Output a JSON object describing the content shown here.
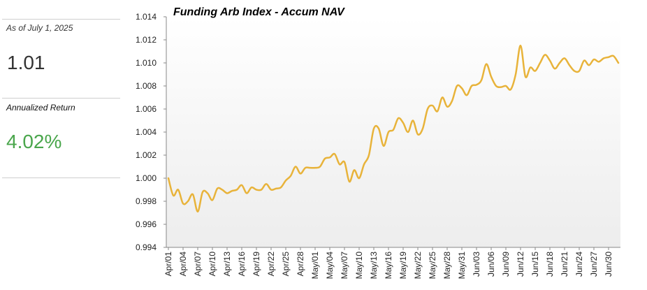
{
  "sidebar": {
    "as_of": "As of July 1, 2025",
    "nav_value": "1.01",
    "annualized_label": "Annualized Return",
    "annualized_value": "4.02%",
    "value_color": "#4aa64c"
  },
  "chart_data": {
    "type": "area",
    "title": "Funding Arb Index - Accum NAV",
    "xlabel": "",
    "ylabel": "",
    "ylim": [
      0.994,
      1.014
    ],
    "y_ticks": [
      "1.014",
      "1.012",
      "1.010",
      "1.008",
      "1.006",
      "1.004",
      "1.002",
      "1.000",
      "0.998",
      "0.996",
      "0.994"
    ],
    "x_ticks": [
      "Apr/01",
      "Apr/04",
      "Apr/07",
      "Apr/10",
      "Apr/13",
      "Apr/16",
      "Apr/19",
      "Apr/22",
      "Apr/25",
      "Apr/28",
      "May/01",
      "May/04",
      "May/07",
      "May/10",
      "May/13",
      "May/16",
      "May/19",
      "May/22",
      "May/25",
      "May/28",
      "May/31",
      "Jun/03",
      "Jun/06",
      "Jun/09",
      "Jun/12",
      "Jun/15",
      "Jun/18",
      "Jun/21",
      "Jun/24",
      "Jun/27",
      "Jun/30"
    ],
    "line_color": "#e8b33a",
    "grid": false,
    "series": [
      {
        "values": [
          1.0,
          0.9985,
          0.999,
          0.9978,
          0.998,
          0.9986,
          0.9971,
          0.9988,
          0.9987,
          0.9981,
          0.9991,
          0.999,
          0.9987,
          0.9989,
          0.999,
          0.9994,
          0.9987,
          0.9992,
          0.999,
          0.999,
          0.9995,
          0.999,
          0.9991,
          0.9992,
          0.9998,
          1.0002,
          1.001,
          1.0004,
          1.0009,
          1.0009,
          1.0009,
          1.001,
          1.0017,
          1.0018,
          1.0021,
          1.0012,
          1.0014,
          0.9997,
          1.0007,
          1.0,
          1.0012,
          1.002,
          1.0043,
          1.0043,
          1.0028,
          1.004,
          1.0042,
          1.0052,
          1.0048,
          1.004,
          1.005,
          1.0038,
          1.0043,
          1.006,
          1.0063,
          1.0058,
          1.007,
          1.0062,
          1.0067,
          1.008,
          1.0078,
          1.0072,
          1.008,
          1.0081,
          1.0085,
          1.0099,
          1.0088,
          1.008,
          1.0079,
          1.008,
          1.0077,
          1.009,
          1.0115,
          1.0088,
          1.0096,
          1.0093,
          1.01,
          1.0107,
          1.0102,
          1.0095,
          1.01,
          1.0104,
          1.0098,
          1.0093,
          1.0093,
          1.0102,
          1.0098,
          1.0103,
          1.0101,
          1.0104,
          1.0105,
          1.0106,
          1.01
        ]
      }
    ]
  }
}
